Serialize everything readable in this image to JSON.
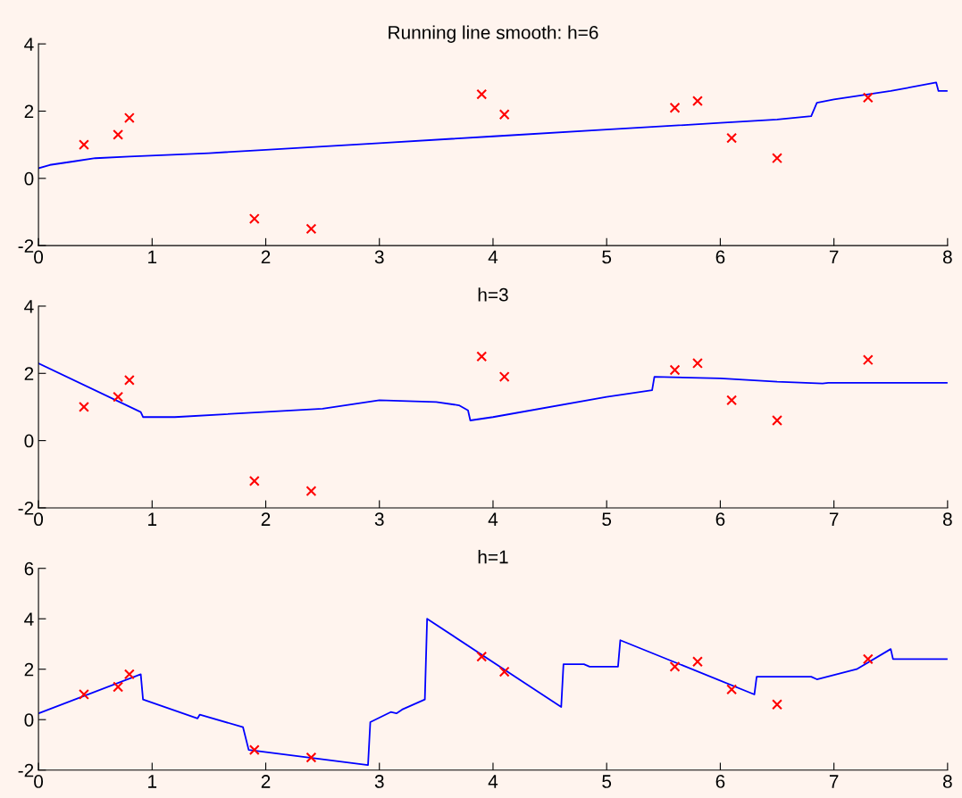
{
  "chart_data": [
    {
      "type": "line",
      "title": "Running line smooth: h=6",
      "xlim": [
        0,
        8
      ],
      "xticks": [
        0,
        1,
        2,
        3,
        4,
        5,
        6,
        7,
        8
      ],
      "ylim": [
        -2,
        4
      ],
      "yticks": [
        -2,
        0,
        2,
        4
      ],
      "grid": false,
      "series": [
        {
          "type": "scatter",
          "marker": "cross",
          "color": "#ff0000",
          "x": [
            0.4,
            0.7,
            0.8,
            1.9,
            2.4,
            3.9,
            4.1,
            5.6,
            5.8,
            6.1,
            6.5,
            7.3
          ],
          "values": [
            1.0,
            1.3,
            1.8,
            -1.2,
            -1.5,
            2.5,
            1.9,
            2.1,
            2.3,
            1.2,
            0.6,
            2.4
          ]
        },
        {
          "marker": "none",
          "color": "#0000ff",
          "x": [
            0,
            0.1,
            0.3,
            0.5,
            0.8,
            1.5,
            2,
            3,
            4,
            5,
            6,
            6.5,
            6.8,
            6.85,
            7,
            7.5,
            7.9,
            7.92,
            8
          ],
          "values": [
            0.3,
            0.4,
            0.5,
            0.6,
            0.65,
            0.75,
            0.85,
            1.05,
            1.25,
            1.45,
            1.65,
            1.75,
            1.85,
            2.25,
            2.35,
            2.6,
            2.85,
            2.6,
            2.6
          ]
        }
      ]
    },
    {
      "type": "line",
      "title": "h=3",
      "xlim": [
        0,
        8
      ],
      "xticks": [
        0,
        1,
        2,
        3,
        4,
        5,
        6,
        7,
        8
      ],
      "ylim": [
        -2,
        4
      ],
      "yticks": [
        -2,
        0,
        2,
        4
      ],
      "grid": false,
      "series": [
        {
          "type": "scatter",
          "marker": "cross",
          "color": "#ff0000",
          "x": [
            0.4,
            0.7,
            0.8,
            1.9,
            2.4,
            3.9,
            4.1,
            5.6,
            5.8,
            6.1,
            6.5,
            7.3
          ],
          "values": [
            1.0,
            1.3,
            1.8,
            -1.2,
            -1.5,
            2.5,
            1.9,
            2.1,
            2.3,
            1.2,
            0.6,
            2.4
          ]
        },
        {
          "marker": "none",
          "color": "#0000ff",
          "x": [
            0,
            0.9,
            0.92,
            1.2,
            2.5,
            3,
            3.5,
            3.7,
            3.78,
            3.8,
            4,
            5,
            5.4,
            5.42,
            6,
            6.5,
            6.9,
            6.95,
            8
          ],
          "values": [
            2.3,
            0.85,
            0.7,
            0.7,
            0.95,
            1.2,
            1.15,
            1.05,
            0.9,
            0.6,
            0.7,
            1.3,
            1.5,
            1.9,
            1.85,
            1.75,
            1.7,
            1.72,
            1.72
          ]
        }
      ]
    },
    {
      "type": "line",
      "title": "h=1",
      "xlim": [
        0,
        8
      ],
      "xticks": [
        0,
        1,
        2,
        3,
        4,
        5,
        6,
        7,
        8
      ],
      "ylim": [
        -2,
        6
      ],
      "yticks": [
        -2,
        0,
        2,
        4,
        6
      ],
      "grid": false,
      "series": [
        {
          "type": "scatter",
          "marker": "cross",
          "color": "#ff0000",
          "x": [
            0.4,
            0.7,
            0.8,
            1.9,
            2.4,
            3.9,
            4.1,
            5.6,
            5.8,
            6.1,
            6.5,
            7.3
          ],
          "values": [
            1.0,
            1.3,
            1.8,
            -1.2,
            -1.5,
            2.5,
            1.9,
            2.1,
            2.3,
            1.2,
            0.6,
            2.4
          ]
        },
        {
          "marker": "none",
          "color": "#0000ff",
          "x": [
            0,
            0.9,
            0.92,
            1.4,
            1.42,
            1.8,
            1.85,
            2.9,
            2.92,
            3.1,
            3.15,
            3.2,
            3.4,
            3.42,
            4.6,
            4.62,
            4.8,
            4.85,
            5.1,
            5.12,
            6.3,
            6.32,
            6.8,
            6.85,
            7.2,
            7.5,
            7.52,
            8
          ],
          "values": [
            0.25,
            1.8,
            0.8,
            0.05,
            0.2,
            -0.3,
            -1.2,
            -1.8,
            -0.1,
            0.3,
            0.25,
            0.4,
            0.8,
            4.0,
            0.5,
            2.2,
            2.2,
            2.1,
            2.1,
            3.15,
            1.0,
            1.7,
            1.7,
            1.6,
            2.0,
            2.8,
            2.4,
            2.4
          ]
        }
      ]
    }
  ]
}
